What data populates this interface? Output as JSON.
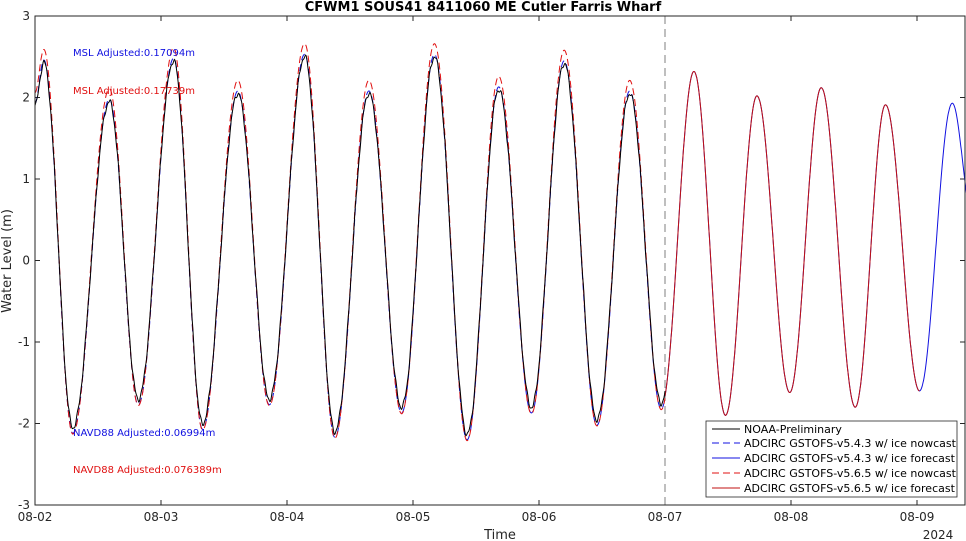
{
  "chart_data": {
    "type": "line",
    "title": "CFWM1 SOUS41 8411060 ME Cutler Farris Wharf",
    "xlabel": "Time",
    "ylabel": "Water Level (m)",
    "x_tick_labels": [
      "08-02",
      "08-03",
      "08-04",
      "08-05",
      "08-06",
      "08-07",
      "08-08",
      "08-09"
    ],
    "x_secondary_label": "2024",
    "x_range_days": [
      0,
      7.4
    ],
    "ylim": [
      -3,
      3
    ],
    "y_ticks": [
      -3,
      -2,
      -1,
      0,
      1,
      2,
      3
    ],
    "forecast_start": "08-07",
    "grid": false,
    "legend_position": "bottom-right",
    "annotations": [
      {
        "text": "MSL Adjusted:0.17094m",
        "color": "#1010e0"
      },
      {
        "text": "MSL Adjusted:0.17739m",
        "color": "#e01010"
      },
      {
        "text": "NAVD88 Adjusted:0.06994m",
        "color": "#1010e0"
      },
      {
        "text": "NAVD88 Adjusted:0.076389m",
        "color": "#e01010"
      }
    ],
    "tide_extrema": {
      "x": [
        0.0,
        0.07,
        0.3,
        0.59,
        0.82,
        1.1,
        1.33,
        1.61,
        1.86,
        2.14,
        2.38,
        2.65,
        2.91,
        3.17,
        3.43,
        3.68,
        3.94,
        4.2,
        4.46,
        4.72,
        4.97,
        5.23,
        5.48,
        5.73,
        5.99,
        6.24,
        6.51,
        6.75,
        7.02,
        7.28,
        7.44
      ],
      "y": [
        1.9,
        2.43,
        -2.1,
        1.95,
        -1.75,
        2.45,
        -2.05,
        2.05,
        -1.75,
        2.5,
        -2.15,
        2.05,
        -1.85,
        2.5,
        -2.18,
        2.1,
        -1.85,
        2.42,
        -2.0,
        2.05,
        -1.8,
        2.32,
        -1.9,
        2.02,
        -1.62,
        2.12,
        -1.8,
        1.91,
        -1.6,
        1.93,
        0.55
      ]
    },
    "series": [
      {
        "name": "NOAA-Preliminary",
        "color": "#000000",
        "dash": "",
        "x_end": 5.0,
        "peak_offset": 0.0,
        "trough_offset": -0.05
      },
      {
        "name": "ADCIRC GSTOFS-v5.4.3 w/ ice nowcast",
        "color": "#1010e0",
        "dash": "7,4",
        "x_end": 5.0,
        "peak_offset": 0.03,
        "trough_offset": 0.02
      },
      {
        "name": "ADCIRC GSTOFS-v5.4.3 w/ ice forecast",
        "color": "#1010e0",
        "dash": "",
        "x_end": 7.44,
        "x_start": 5.0,
        "peak_offset": 0.0,
        "trough_offset": 0.0
      },
      {
        "name": "ADCIRC GSTOFS-v5.6.5 w/ ice nowcast",
        "color": "#e01010",
        "dash": "7,4",
        "x_end": 5.0,
        "peak_offset": 0.16,
        "trough_offset": 0.03
      },
      {
        "name": "ADCIRC GSTOFS-v5.6.5 w/ ice forecast",
        "color": "#c01010",
        "dash": "",
        "x_end": 7.02,
        "x_start": 5.0,
        "peak_offset": 0.0,
        "trough_offset": 0.0
      }
    ]
  }
}
